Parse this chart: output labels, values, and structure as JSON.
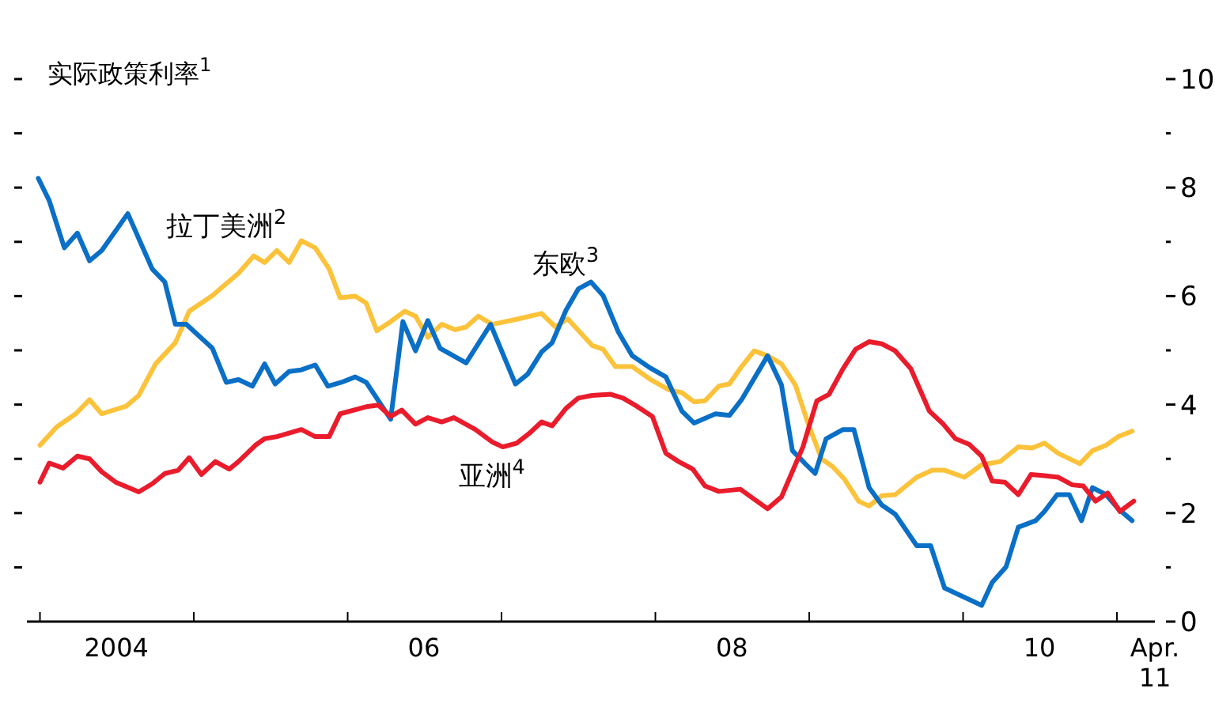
{
  "chart_data": {
    "type": "line",
    "ylabel": "实际政策利率$^{1}$",
    "xlim": [
      "2003-12-01",
      "2011-04-01"
    ],
    "ylim": [
      0,
      10
    ],
    "xticks": [
      {
        "value": "2004-01-01",
        "label": null
      },
      {
        "value": "2005-01-01",
        "label": null
      },
      {
        "value": "2006-01-01",
        "label": null
      },
      {
        "value": "2007-01-01",
        "label": null
      },
      {
        "value": "2008-01-01",
        "label": null
      },
      {
        "value": "2009-01-01",
        "label": null
      },
      {
        "value": "2010-01-01",
        "label": null
      },
      {
        "value": "2011-01-01",
        "label": null
      },
      {
        "value": "2004-07-01",
        "label": "2004"
      },
      {
        "value": "2006-07-01",
        "label": "06"
      },
      {
        "value": "2008-07-01",
        "label": "08"
      },
      {
        "value": "2010-07-01",
        "label": "10"
      },
      {
        "value": "2011-04-01",
        "label": "Apr. 11"
      }
    ],
    "yticks": [
      0,
      {
        "value": 1,
        "label": null
      },
      2,
      {
        "value": 3,
        "label": null
      },
      4,
      {
        "value": 5,
        "label": null
      },
      6,
      {
        "value": 7,
        "label": null
      },
      8,
      {
        "value": 9,
        "label": null
      },
      10
    ],
    "grid": false,
    "legend": false,
    "marker": "none",
    "line_style": "solid",
    "series": [
      {
        "name": "拉丁美洲$^{2}$",
        "color": "#fcc23a",
        "x": [
          "2004-01-01",
          "2004-02-10",
          "2004-03-26",
          "2004-04-28",
          "2004-05-27",
          "2004-07-24",
          "2004-08-23",
          "2004-10-02",
          "2004-11-18",
          "2004-12-21",
          "2005-02-14",
          "2005-04-17",
          "2005-05-23",
          "2005-06-18",
          "2005-07-17",
          "2005-08-15",
          "2005-09-13",
          "2005-10-16",
          "2005-11-18",
          "2005-12-14",
          "2006-01-19",
          "2006-02-14",
          "2006-03-11",
          "2006-04-13",
          "2006-05-16",
          "2006-06-11",
          "2006-07-10",
          "2006-08-12",
          "2006-09-13",
          "2006-10-09",
          "2006-11-07",
          "2006-12-10",
          "2007-02-10",
          "2007-04-06",
          "2007-05-09",
          "2007-06-07",
          "2007-08-04",
          "2007-08-30",
          "2007-09-28",
          "2007-11-07",
          "2007-12-21",
          "2008-02-03",
          "2008-03-04",
          "2008-04-02",
          "2008-04-28",
          "2008-05-31",
          "2008-06-25",
          "2008-07-24",
          "2008-08-23",
          "2008-09-24",
          "2008-10-27",
          "2008-11-29",
          "2008-12-28",
          "2009-01-30",
          "2009-02-25",
          "2009-03-26",
          "2009-04-28",
          "2009-05-23",
          "2009-06-22",
          "2009-07-24",
          "2009-09-13",
          "2009-10-20",
          "2009-11-18",
          "2010-01-04",
          "2010-02-14",
          "2010-03-30",
          "2010-05-12",
          "2010-06-14",
          "2010-07-13",
          "2010-08-15",
          "2010-10-05",
          "2010-11-04",
          "2010-12-06",
          "2011-01-04",
          "2011-02-06"
        ],
        "values": [
          3.25,
          3.59,
          3.83,
          4.09,
          3.83,
          3.97,
          4.17,
          4.75,
          5.14,
          5.72,
          6.01,
          6.42,
          6.74,
          6.62,
          6.84,
          6.62,
          7.02,
          6.89,
          6.5,
          5.97,
          6.0,
          5.87,
          5.36,
          5.53,
          5.72,
          5.63,
          5.24,
          5.48,
          5.38,
          5.43,
          5.63,
          5.48,
          5.58,
          5.68,
          5.43,
          5.58,
          5.09,
          5.02,
          4.7,
          4.7,
          4.46,
          4.27,
          4.22,
          4.05,
          4.07,
          4.34,
          4.38,
          4.7,
          4.99,
          4.9,
          4.75,
          4.36,
          3.68,
          3.0,
          2.86,
          2.62,
          2.22,
          2.13,
          2.32,
          2.34,
          2.66,
          2.79,
          2.79,
          2.66,
          2.89,
          2.95,
          3.22,
          3.2,
          3.29,
          3.1,
          2.91,
          3.15,
          3.25,
          3.41,
          3.51
        ]
      },
      {
        "name": "东欧$^{3}$",
        "color": "#0a6fc6",
        "x": [
          "2003-12-28",
          "2004-01-23",
          "2004-02-28",
          "2004-03-30",
          "2004-04-28",
          "2004-05-27",
          "2004-07-28",
          "2004-08-30",
          "2004-09-24",
          "2004-10-24",
          "2004-11-18",
          "2004-12-14",
          "2005-02-14",
          "2005-03-19",
          "2005-04-17",
          "2005-05-20",
          "2005-06-18",
          "2005-07-13",
          "2005-08-15",
          "2005-09-13",
          "2005-10-16",
          "2005-11-15",
          "2005-12-17",
          "2006-01-19",
          "2006-02-14",
          "2006-04-13",
          "2006-05-12",
          "2006-06-11",
          "2006-07-10",
          "2006-08-08",
          "2006-10-09",
          "2006-12-06",
          "2007-02-03",
          "2007-03-04",
          "2007-04-06",
          "2007-05-01",
          "2007-06-03",
          "2007-07-02",
          "2007-08-01",
          "2007-08-30",
          "2007-10-05",
          "2007-11-07",
          "2007-12-21",
          "2008-01-26",
          "2008-03-04",
          "2008-04-02",
          "2008-05-23",
          "2008-06-25",
          "2008-07-24",
          "2008-09-24",
          "2008-10-27",
          "2008-11-22",
          "2008-12-25",
          "2009-01-15",
          "2009-02-10",
          "2009-03-22",
          "2009-04-17",
          "2009-05-23",
          "2009-06-22",
          "2009-07-24",
          "2009-09-13",
          "2009-10-16",
          "2009-11-18",
          "2010-01-01",
          "2010-02-14",
          "2010-03-11",
          "2010-04-13",
          "2010-05-12",
          "2010-06-22",
          "2010-07-13",
          "2010-08-12",
          "2010-09-10",
          "2010-10-09",
          "2010-11-04",
          "2010-12-06",
          "2011-01-04",
          "2011-02-06"
        ],
        "values": [
          8.17,
          7.76,
          6.89,
          7.16,
          6.65,
          6.84,
          7.52,
          6.94,
          6.5,
          6.26,
          5.48,
          5.48,
          5.04,
          4.41,
          4.46,
          4.34,
          4.75,
          4.38,
          4.61,
          4.64,
          4.73,
          4.34,
          4.41,
          4.51,
          4.41,
          3.73,
          5.53,
          4.99,
          5.55,
          5.04,
          4.77,
          5.48,
          4.38,
          4.56,
          4.97,
          5.14,
          5.74,
          6.13,
          6.26,
          6.01,
          5.34,
          4.9,
          4.67,
          4.51,
          3.88,
          3.66,
          3.83,
          3.8,
          4.09,
          4.9,
          4.36,
          3.15,
          2.89,
          2.73,
          3.37,
          3.54,
          3.54,
          2.47,
          2.15,
          1.98,
          1.4,
          1.4,
          0.62,
          0.46,
          0.3,
          0.72,
          1.01,
          1.74,
          1.86,
          2.03,
          2.34,
          2.34,
          1.86,
          2.47,
          2.34,
          2.08,
          1.86
        ]
      },
      {
        "name": "亚洲$^{4}$",
        "color": "#ea1c2c",
        "x": [
          "2004-01-01",
          "2004-01-23",
          "2004-02-25",
          "2004-03-30",
          "2004-04-28",
          "2004-05-27",
          "2004-06-29",
          "2004-08-23",
          "2004-09-24",
          "2004-10-24",
          "2004-11-25",
          "2004-12-21",
          "2005-01-19",
          "2005-02-21",
          "2005-03-26",
          "2005-04-17",
          "2005-05-27",
          "2005-06-18",
          "2005-07-17",
          "2005-09-13",
          "2005-10-16",
          "2005-11-18",
          "2005-12-14",
          "2006-02-14",
          "2006-03-15",
          "2006-04-13",
          "2006-05-09",
          "2006-06-11",
          "2006-07-10",
          "2006-08-12",
          "2006-09-10",
          "2006-10-31",
          "2006-12-10",
          "2007-01-04",
          "2007-02-06",
          "2007-03-08",
          "2007-04-06",
          "2007-05-01",
          "2007-06-03",
          "2007-07-02",
          "2007-08-04",
          "2007-09-17",
          "2007-10-16",
          "2007-11-18",
          "2007-12-25",
          "2008-01-26",
          "2008-02-25",
          "2008-03-30",
          "2008-04-28",
          "2008-05-31",
          "2008-07-21",
          "2008-08-26",
          "2008-09-24",
          "2008-10-27",
          "2008-12-17",
          "2009-01-19",
          "2009-02-17",
          "2009-03-22",
          "2009-04-21",
          "2009-05-23",
          "2009-06-22",
          "2009-07-24",
          "2009-08-30",
          "2009-10-13",
          "2009-11-15",
          "2009-12-14",
          "2010-01-15",
          "2010-02-14",
          "2010-03-11",
          "2010-04-10",
          "2010-05-12",
          "2010-06-11",
          "2010-07-13",
          "2010-08-15",
          "2010-09-17",
          "2010-10-13",
          "2010-11-11",
          "2010-12-10",
          "2011-01-08",
          "2011-02-10"
        ],
        "values": [
          2.57,
          2.92,
          2.83,
          3.05,
          3.0,
          2.76,
          2.57,
          2.39,
          2.54,
          2.73,
          2.79,
          3.02,
          2.71,
          2.95,
          2.81,
          2.95,
          3.25,
          3.37,
          3.41,
          3.54,
          3.41,
          3.41,
          3.83,
          3.96,
          3.99,
          3.78,
          3.9,
          3.64,
          3.76,
          3.68,
          3.76,
          3.54,
          3.31,
          3.22,
          3.29,
          3.47,
          3.68,
          3.61,
          3.93,
          4.12,
          4.17,
          4.19,
          4.12,
          3.97,
          3.78,
          3.1,
          2.95,
          2.81,
          2.5,
          2.4,
          2.44,
          2.24,
          2.08,
          2.3,
          3.22,
          4.07,
          4.19,
          4.66,
          5.02,
          5.16,
          5.12,
          4.99,
          4.66,
          3.88,
          3.64,
          3.37,
          3.27,
          3.05,
          2.59,
          2.57,
          2.34,
          2.71,
          2.69,
          2.66,
          2.52,
          2.5,
          2.22,
          2.37,
          2.03,
          2.22
        ]
      }
    ]
  }
}
